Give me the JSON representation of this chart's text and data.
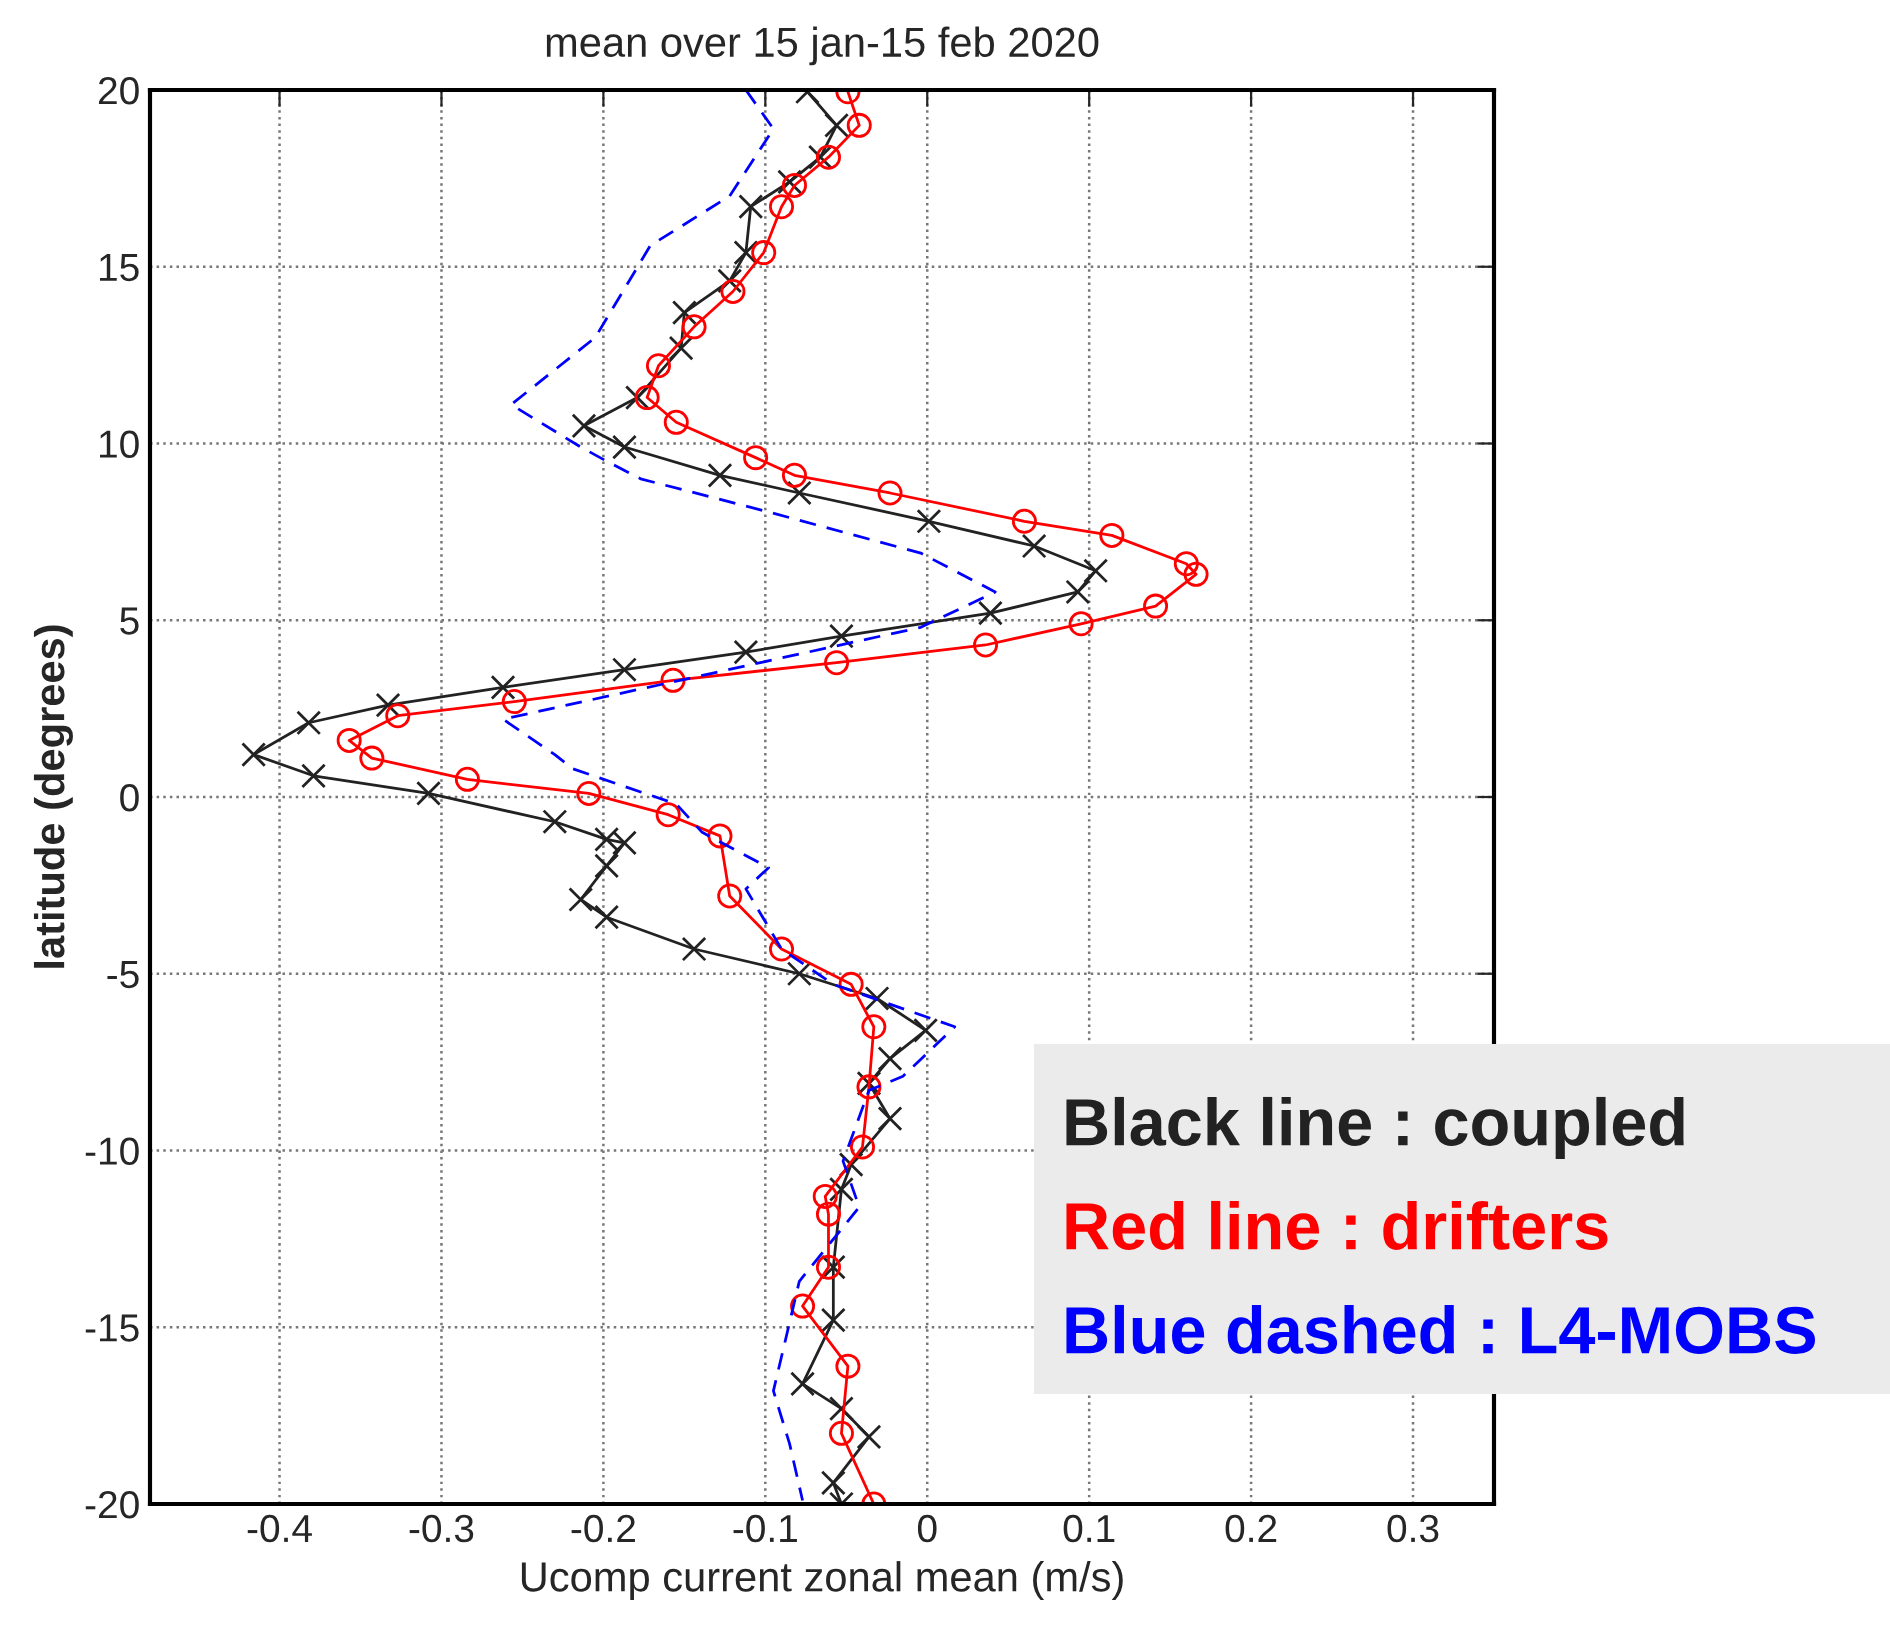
{
  "chart_data": {
    "type": "line",
    "title": "mean over 15 jan-15 feb 2020",
    "xlabel": "Ucomp current zonal mean (m/s)",
    "ylabel": "latitude (degrees)",
    "xlim": [
      -0.48,
      0.35
    ],
    "xticks": [
      -0.4,
      -0.3,
      -0.2,
      -0.1,
      0,
      0.1,
      0.2,
      0.3
    ],
    "ylim": [
      -20,
      20
    ],
    "yticks": [
      -20,
      -15,
      -10,
      -5,
      0,
      5,
      10,
      15,
      20
    ],
    "grid": true,
    "legend": "bottom right",
    "series": [
      {
        "name": "Black line : coupled",
        "color": "#222222",
        "marker": "cross",
        "line_style": "solid",
        "x": [
          -0.074,
          -0.056,
          -0.066,
          -0.085,
          -0.109,
          -0.112,
          -0.122,
          -0.15,
          -0.152,
          -0.179,
          -0.212,
          -0.187,
          -0.128,
          -0.079,
          0.001,
          0.066,
          0.104,
          0.093,
          0.039,
          -0.053,
          -0.112,
          -0.187,
          -0.262,
          -0.333,
          -0.382,
          -0.416,
          -0.379,
          -0.308,
          -0.23,
          -0.198,
          -0.187,
          -0.198,
          -0.214,
          -0.198,
          -0.144,
          -0.079,
          -0.031,
          -0.001,
          -0.023,
          -0.036,
          -0.023,
          -0.047,
          -0.053,
          -0.058,
          -0.058,
          -0.077,
          -0.053,
          -0.036,
          -0.058,
          -0.053
        ],
        "values": [
          19.95,
          19.0,
          18.1,
          17.4,
          16.7,
          15.4,
          14.6,
          13.7,
          12.7,
          11.3,
          10.5,
          9.9,
          9.1,
          8.6,
          7.8,
          7.1,
          6.4,
          5.8,
          5.2,
          4.55,
          4.1,
          3.6,
          3.1,
          2.6,
          2.1,
          1.2,
          0.6,
          0.1,
          -0.7,
          -1.2,
          -1.3,
          -1.95,
          -2.9,
          -3.4,
          -4.3,
          -5.0,
          -5.7,
          -6.6,
          -7.4,
          -8.1,
          -9.1,
          -10.4,
          -11.1,
          -13.3,
          -14.8,
          -16.6,
          -17.3,
          -18.1,
          -19.4,
          -20
        ]
      },
      {
        "name": "Red line : drifters",
        "color": "#ff0000",
        "marker": "circle",
        "line_style": "solid",
        "x": [
          -0.049,
          -0.042,
          -0.061,
          -0.082,
          -0.09,
          -0.101,
          -0.12,
          -0.144,
          -0.166,
          -0.173,
          -0.155,
          -0.106,
          -0.082,
          -0.023,
          0.06,
          0.114,
          0.16,
          0.166,
          0.141,
          0.095,
          0.036,
          -0.056,
          -0.157,
          -0.255,
          -0.327,
          -0.357,
          -0.343,
          -0.284,
          -0.209,
          -0.16,
          -0.128,
          -0.122,
          -0.09,
          -0.047,
          -0.033,
          -0.036,
          -0.04,
          -0.063,
          -0.061,
          -0.061,
          -0.077,
          -0.049,
          -0.053,
          -0.033
        ],
        "values": [
          19.95,
          19.0,
          18.1,
          17.3,
          16.7,
          15.4,
          14.3,
          13.3,
          12.2,
          11.3,
          10.6,
          9.6,
          9.1,
          8.6,
          7.8,
          7.4,
          6.6,
          6.3,
          5.4,
          4.9,
          4.3,
          3.8,
          3.3,
          2.7,
          2.3,
          1.6,
          1.1,
          0.5,
          0.1,
          -0.5,
          -1.1,
          -2.8,
          -4.3,
          -5.3,
          -6.5,
          -8.2,
          -9.9,
          -11.3,
          -11.8,
          -13.3,
          -14.4,
          -16.1,
          -18.0,
          -20
        ]
      },
      {
        "name": "Blue dashed : L4-MOBS",
        "color": "#0000ff",
        "marker": "none",
        "line_style": "dashed",
        "x": [
          -0.112,
          -0.095,
          -0.122,
          -0.171,
          -0.205,
          -0.257,
          -0.214,
          -0.198,
          -0.177,
          -0.101,
          -0.004,
          0.042,
          -0.004,
          -0.133,
          -0.262,
          -0.23,
          -0.219,
          -0.155,
          -0.139,
          -0.098,
          -0.112,
          -0.09,
          -0.058,
          0.017,
          -0.015,
          -0.036,
          -0.052,
          -0.042,
          -0.079,
          -0.095,
          -0.085,
          -0.077
        ],
        "values": [
          20,
          18.9,
          17.0,
          15.6,
          13.0,
          11.1,
          9.9,
          9.5,
          9.0,
          8.1,
          6.9,
          5.8,
          4.8,
          3.5,
          2.2,
          1.2,
          0.8,
          -0.2,
          -1.0,
          -2.0,
          -2.6,
          -4.3,
          -5.3,
          -6.5,
          -7.9,
          -8.3,
          -10.3,
          -11.6,
          -13.7,
          -16.8,
          -18.3,
          -19.9
        ]
      }
    ]
  }
}
